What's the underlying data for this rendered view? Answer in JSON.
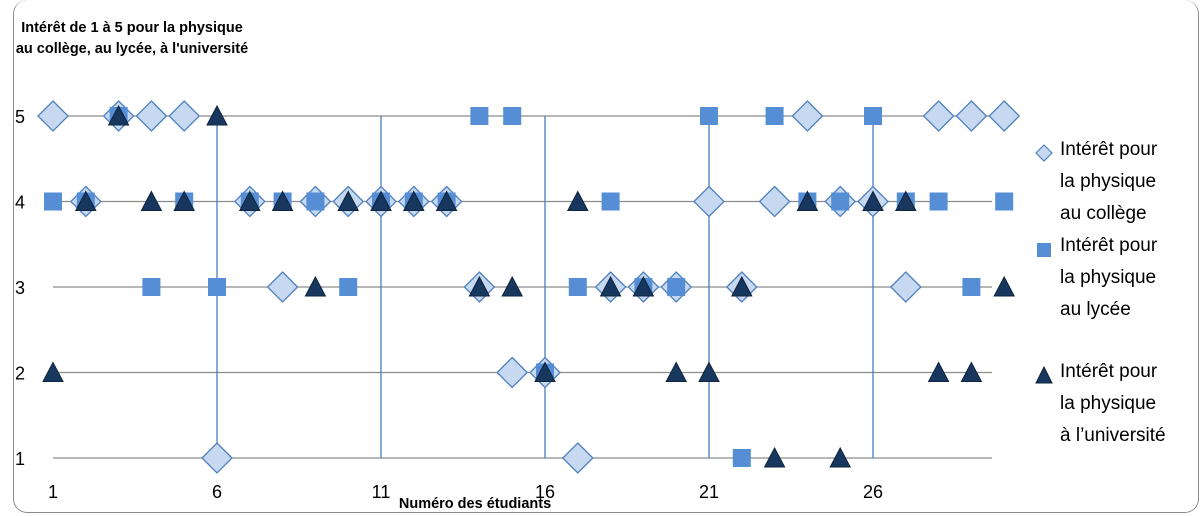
{
  "chart_data": {
    "type": "scatter",
    "ylabel": "Intérêt de 1 à 5 pour la physique au collège, au lycée, à l'université",
    "xlabel": "Numéro des étudiants",
    "x_ticks": [
      1,
      6,
      11,
      16,
      21,
      26
    ],
    "y_ticks": [
      1,
      2,
      3,
      4,
      5
    ],
    "xlim": [
      1,
      29.8
    ],
    "ylim": [
      1,
      5
    ],
    "vertical_lines": [
      6,
      11,
      16,
      21,
      26
    ],
    "legend_position": "right",
    "series": [
      {
        "name": "Intérêt pour la physique au collège",
        "marker": "diamond",
        "color": "#c6d9f1",
        "stroke": "#4f81bd",
        "points": [
          [
            1,
            5
          ],
          [
            2,
            4
          ],
          [
            3,
            5
          ],
          [
            4,
            5
          ],
          [
            5,
            5
          ],
          [
            6,
            1
          ],
          [
            7,
            4
          ],
          [
            8,
            3
          ],
          [
            9,
            4
          ],
          [
            10,
            4
          ],
          [
            11,
            4
          ],
          [
            12,
            4
          ],
          [
            13,
            4
          ],
          [
            14,
            3
          ],
          [
            15,
            2
          ],
          [
            16,
            2
          ],
          [
            17,
            1
          ],
          [
            18,
            3
          ],
          [
            19,
            3
          ],
          [
            20,
            3
          ],
          [
            21,
            4
          ],
          [
            22,
            3
          ],
          [
            23,
            4
          ],
          [
            24,
            5
          ],
          [
            25,
            4
          ],
          [
            26,
            4
          ],
          [
            27,
            3
          ],
          [
            28,
            5
          ],
          [
            29,
            5
          ],
          [
            30,
            5
          ]
        ]
      },
      {
        "name": "Intérêt pour la physique au lycée",
        "marker": "square",
        "color": "#558ed5",
        "points": [
          [
            1,
            4
          ],
          [
            2,
            4
          ],
          [
            3,
            5
          ],
          [
            4,
            3
          ],
          [
            5,
            4
          ],
          [
            6,
            3
          ],
          [
            7,
            4
          ],
          [
            8,
            4
          ],
          [
            9,
            4
          ],
          [
            10,
            3
          ],
          [
            11,
            4
          ],
          [
            12,
            4
          ],
          [
            13,
            4
          ],
          [
            14,
            5
          ],
          [
            15,
            5
          ],
          [
            16,
            2
          ],
          [
            17,
            3
          ],
          [
            18,
            4
          ],
          [
            19,
            3
          ],
          [
            20,
            3
          ],
          [
            21,
            5
          ],
          [
            22,
            1
          ],
          [
            23,
            5
          ],
          [
            24,
            4
          ],
          [
            25,
            4
          ],
          [
            26,
            5
          ],
          [
            27,
            4
          ],
          [
            28,
            4
          ],
          [
            29,
            3
          ],
          [
            30,
            4
          ]
        ]
      },
      {
        "name": "Intérêt pour la physique à l’université",
        "marker": "triangle",
        "color": "#17375e",
        "points": [
          [
            1,
            2
          ],
          [
            2,
            4
          ],
          [
            3,
            5
          ],
          [
            4,
            4
          ],
          [
            5,
            4
          ],
          [
            6,
            5
          ],
          [
            7,
            4
          ],
          [
            8,
            4
          ],
          [
            9,
            3
          ],
          [
            10,
            4
          ],
          [
            11,
            4
          ],
          [
            12,
            4
          ],
          [
            13,
            4
          ],
          [
            14,
            3
          ],
          [
            15,
            3
          ],
          [
            16,
            2
          ],
          [
            17,
            4
          ],
          [
            18,
            3
          ],
          [
            19,
            3
          ],
          [
            20,
            2
          ],
          [
            21,
            2
          ],
          [
            22,
            3
          ],
          [
            23,
            1
          ],
          [
            24,
            4
          ],
          [
            25,
            1
          ],
          [
            26,
            4
          ],
          [
            27,
            4
          ],
          [
            28,
            2
          ],
          [
            29,
            2
          ],
          [
            30,
            3
          ]
        ]
      }
    ],
    "legend": [
      "Intérêt pour\nla physique\nau collège",
      "Intérêt pour\nla physique\nau lycée",
      "Intérêt pour\nla physique\nà l’université"
    ]
  }
}
